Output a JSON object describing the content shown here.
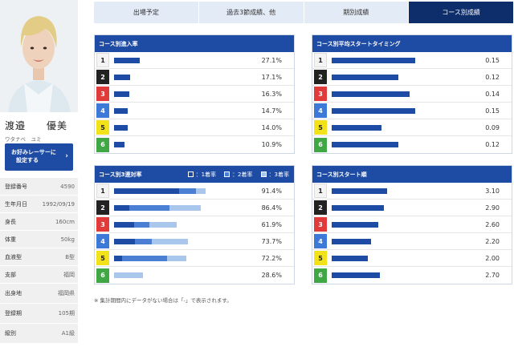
{
  "racer": {
    "name": "渡邉　　優美",
    "kana": "ワタナベ　ユミ",
    "fav_button": "お好みレーサーに\n設定する",
    "profile": [
      {
        "key": "登録番号",
        "value": "4590"
      },
      {
        "key": "生年月日",
        "value": "1992/09/19"
      },
      {
        "key": "身長",
        "value": "160cm"
      },
      {
        "key": "体重",
        "value": "50kg"
      },
      {
        "key": "血液型",
        "value": "B型"
      },
      {
        "key": "支部",
        "value": "福岡"
      },
      {
        "key": "出身地",
        "value": "福岡県"
      },
      {
        "key": "登録期",
        "value": "105期"
      },
      {
        "key": "級別",
        "value": "A1級"
      }
    ]
  },
  "tabs": [
    {
      "label": "出場予定",
      "active": false
    },
    {
      "label": "過去3節成績、他",
      "active": false
    },
    {
      "label": "期別成績",
      "active": false
    },
    {
      "label": "コース別成績",
      "active": true
    }
  ],
  "colors": {
    "primary": "#1e4ba3",
    "dark_tab": "#0d2d6b",
    "bar": "#1e4ba3",
    "bar_2nd": "#4a7fd4",
    "bar_3rd": "#a9c6ec"
  },
  "panels": {
    "entry_rate": {
      "title": "コース別進入率",
      "rows": [
        {
          "course": "1",
          "value": 27.1,
          "label": "27.1%"
        },
        {
          "course": "2",
          "value": 17.1,
          "label": "17.1%"
        },
        {
          "course": "3",
          "value": 16.3,
          "label": "16.3%"
        },
        {
          "course": "4",
          "value": 14.7,
          "label": "14.7%"
        },
        {
          "course": "5",
          "value": 14.0,
          "label": "14.0%"
        },
        {
          "course": "6",
          "value": 10.9,
          "label": "10.9%"
        }
      ]
    },
    "start_timing": {
      "title": "コース別平均スタートタイミング",
      "rows": [
        {
          "course": "1",
          "value": 0.15,
          "label": "0.15"
        },
        {
          "course": "2",
          "value": 0.12,
          "label": "0.12"
        },
        {
          "course": "3",
          "value": 0.14,
          "label": "0.14"
        },
        {
          "course": "4",
          "value": 0.15,
          "label": "0.15"
        },
        {
          "course": "5",
          "value": 0.09,
          "label": "0.09"
        },
        {
          "course": "6",
          "value": 0.12,
          "label": "0.12"
        }
      ]
    },
    "top3_rate": {
      "title": "コース別3連対率",
      "legend": [
        "：1着率",
        "：2着率",
        "：3着率"
      ],
      "rows": [
        {
          "course": "1",
          "first": 65,
          "second": 17,
          "third": 9.4,
          "label": "91.4%"
        },
        {
          "course": "2",
          "first": 15,
          "second": 40,
          "third": 31.4,
          "label": "86.4%"
        },
        {
          "course": "3",
          "first": 20,
          "second": 15,
          "third": 26.9,
          "label": "61.9%"
        },
        {
          "course": "4",
          "first": 21,
          "second": 17,
          "third": 35.7,
          "label": "73.7%"
        },
        {
          "course": "5",
          "first": 8,
          "second": 45,
          "third": 19.2,
          "label": "72.2%"
        },
        {
          "course": "6",
          "first": 0,
          "second": 0,
          "third": 28.6,
          "label": "28.6%"
        }
      ]
    },
    "start_order": {
      "title": "コース別スタート順",
      "rows": [
        {
          "course": "1",
          "value": 3.1,
          "label": "3.10"
        },
        {
          "course": "2",
          "value": 2.9,
          "label": "2.90"
        },
        {
          "course": "3",
          "value": 2.6,
          "label": "2.60"
        },
        {
          "course": "4",
          "value": 2.2,
          "label": "2.20"
        },
        {
          "course": "5",
          "value": 2.0,
          "label": "2.00"
        },
        {
          "course": "6",
          "value": 2.7,
          "label": "2.70"
        }
      ]
    }
  },
  "note": "※ 集計期間内にデータがない場合は「-」で表示されます。"
}
